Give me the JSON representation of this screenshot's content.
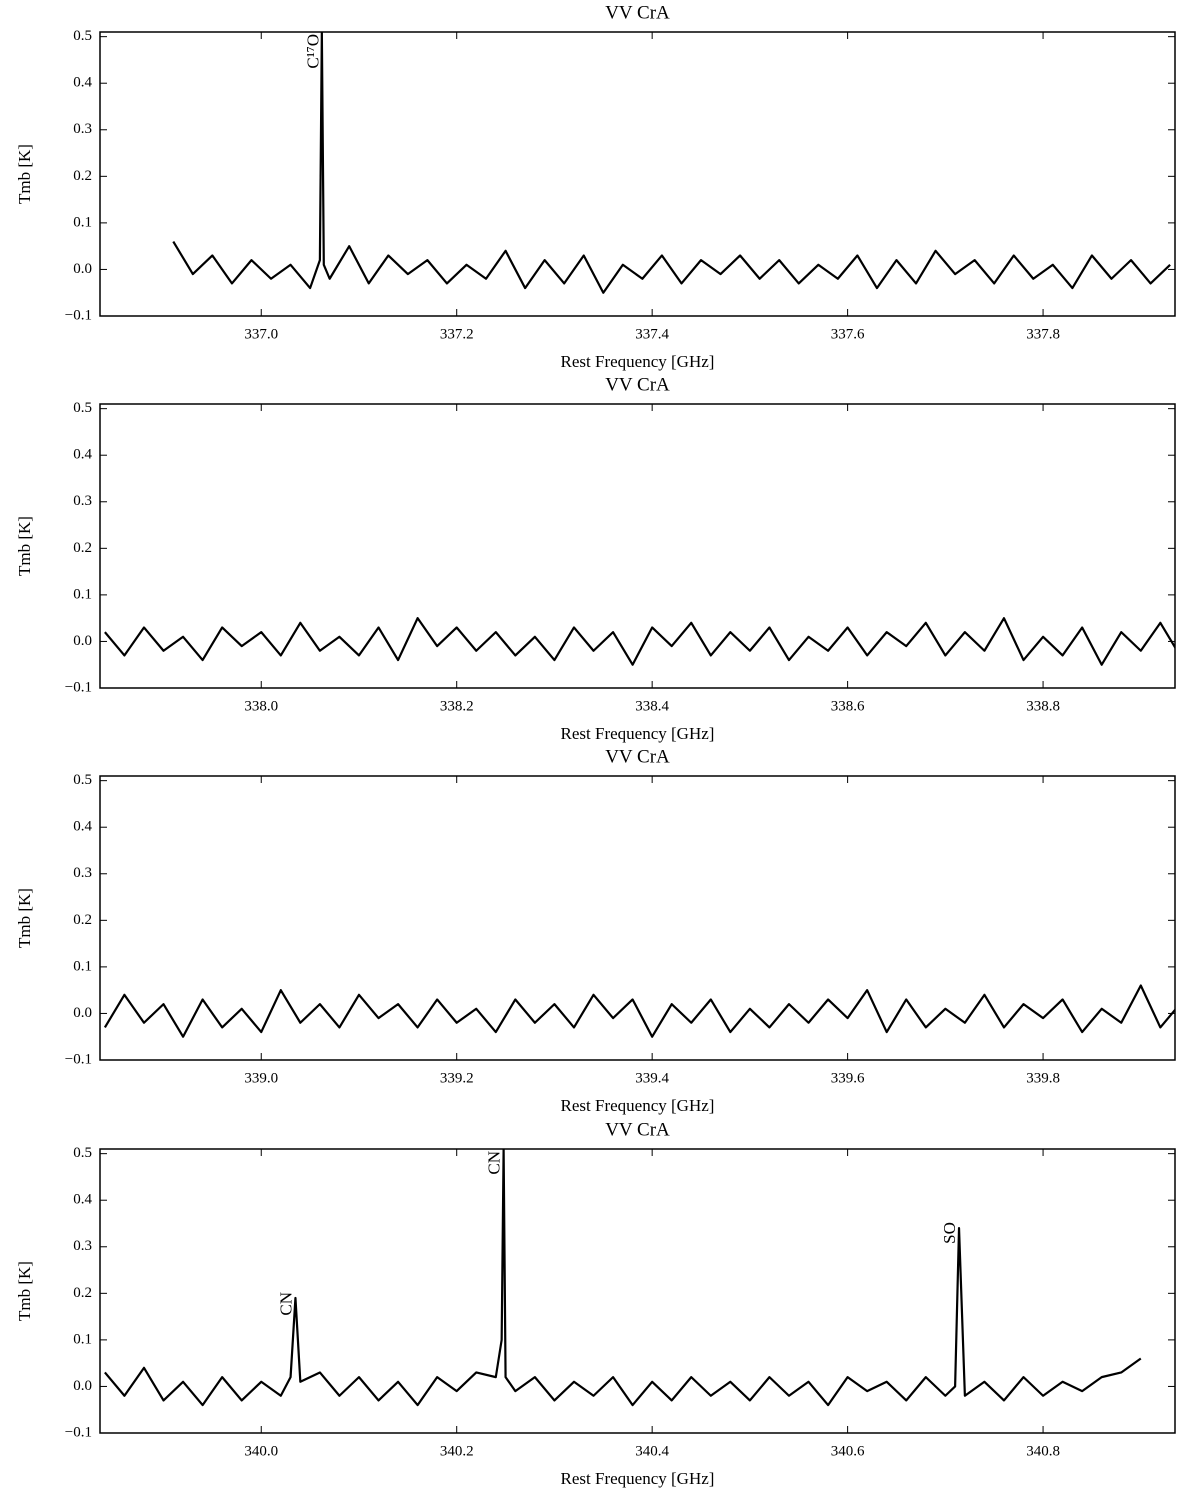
{
  "chart_data": [
    {
      "type": "line",
      "title": "VV CrA",
      "xlabel": "Rest Frequency [GHz]",
      "ylabel": "Tmb [K]",
      "xlim": [
        336.835,
        337.935
      ],
      "ylim": [
        -0.1,
        0.51
      ],
      "xticks": [
        {
          "value": 337.0,
          "label": "337.0"
        },
        337.2,
        337.4,
        337.6,
        337.8
      ],
      "yticks": [
        {
          "value": -0.1,
          "label": "−0.1"
        },
        {
          "value": 0,
          "label": "0.0"
        },
        0.1,
        0.2,
        0.3,
        0.4,
        0.5
      ],
      "series": [
        {
          "color": "#000000",
          "x": [
            336.91,
            336.93,
            336.95,
            336.97,
            336.99,
            337.01,
            337.03,
            337.05,
            337.06,
            337.062,
            337.064,
            337.07,
            337.09,
            337.11,
            337.13,
            337.15,
            337.17,
            337.19,
            337.21,
            337.23,
            337.25,
            337.27,
            337.29,
            337.31,
            337.33,
            337.35,
            337.37,
            337.39,
            337.41,
            337.43,
            337.45,
            337.47,
            337.49,
            337.51,
            337.53,
            337.55,
            337.57,
            337.59,
            337.61,
            337.63,
            337.65,
            337.67,
            337.69,
            337.71,
            337.73,
            337.75,
            337.77,
            337.79,
            337.81,
            337.83,
            337.85,
            337.87,
            337.89,
            337.91,
            337.93
          ],
          "values": [
            0.06,
            -0.01,
            0.03,
            -0.03,
            0.02,
            -0.02,
            0.01,
            -0.04,
            0.02,
            0.51,
            0.01,
            -0.02,
            0.05,
            -0.03,
            0.03,
            -0.01,
            0.02,
            -0.03,
            0.01,
            -0.02,
            0.04,
            -0.04,
            0.02,
            -0.03,
            0.03,
            -0.05,
            0.01,
            -0.02,
            0.03,
            -0.03,
            0.02,
            -0.01,
            0.03,
            -0.02,
            0.02,
            -0.03,
            0.01,
            -0.02,
            0.03,
            -0.04,
            0.02,
            -0.03,
            0.04,
            -0.01,
            0.02,
            -0.03,
            0.03,
            -0.02,
            0.01,
            -0.04,
            0.03,
            -0.02,
            0.02,
            -0.03,
            0.01
          ]
        }
      ],
      "annotations": [
        {
          "text": "C¹⁷O",
          "x": 337.063
        }
      ]
    },
    {
      "type": "line",
      "title": "VV CrA",
      "xlabel": "Rest Frequency [GHz]",
      "ylabel": "Tmb [K]",
      "xlim": [
        337.835,
        338.935
      ],
      "ylim": [
        -0.1,
        0.51
      ],
      "xticks": [
        {
          "value": 338.0,
          "label": "338.0"
        },
        338.2,
        338.4,
        338.6,
        338.8
      ],
      "yticks": [
        {
          "value": -0.1,
          "label": "−0.1"
        },
        {
          "value": 0,
          "label": "0.0"
        },
        0.1,
        0.2,
        0.3,
        0.4,
        0.5
      ],
      "series": [
        {
          "color": "#000000",
          "x": [
            337.84,
            337.86,
            337.88,
            337.9,
            337.92,
            337.94,
            337.96,
            337.98,
            338.0,
            338.02,
            338.04,
            338.06,
            338.08,
            338.1,
            338.12,
            338.14,
            338.16,
            338.18,
            338.2,
            338.22,
            338.24,
            338.26,
            338.28,
            338.3,
            338.32,
            338.34,
            338.36,
            338.38,
            338.4,
            338.42,
            338.44,
            338.46,
            338.48,
            338.5,
            338.52,
            338.54,
            338.56,
            338.58,
            338.6,
            338.62,
            338.64,
            338.66,
            338.68,
            338.7,
            338.72,
            338.74,
            338.76,
            338.78,
            338.8,
            338.82,
            338.84,
            338.86,
            338.88,
            338.9,
            338.92,
            338.94
          ],
          "values": [
            0.02,
            -0.03,
            0.03,
            -0.02,
            0.01,
            -0.04,
            0.03,
            -0.01,
            0.02,
            -0.03,
            0.04,
            -0.02,
            0.01,
            -0.03,
            0.03,
            -0.04,
            0.05,
            -0.01,
            0.03,
            -0.02,
            0.02,
            -0.03,
            0.01,
            -0.04,
            0.03,
            -0.02,
            0.02,
            -0.05,
            0.03,
            -0.01,
            0.04,
            -0.03,
            0.02,
            -0.02,
            0.03,
            -0.04,
            0.01,
            -0.02,
            0.03,
            -0.03,
            0.02,
            -0.01,
            0.04,
            -0.03,
            0.02,
            -0.02,
            0.05,
            -0.04,
            0.01,
            -0.03,
            0.03,
            -0.05,
            0.02,
            -0.02,
            0.04,
            -0.03
          ]
        }
      ]
    },
    {
      "type": "line",
      "title": "VV CrA",
      "xlabel": "Rest Frequency [GHz]",
      "ylabel": "Tmb [K]",
      "xlim": [
        338.835,
        339.935
      ],
      "ylim": [
        -0.1,
        0.51
      ],
      "xticks": [
        {
          "value": 339.0,
          "label": "339.0"
        },
        339.2,
        339.4,
        339.6,
        339.8
      ],
      "yticks": [
        {
          "value": -0.1,
          "label": "−0.1"
        },
        {
          "value": 0,
          "label": "0.0"
        },
        0.1,
        0.2,
        0.3,
        0.4,
        0.5
      ],
      "series": [
        {
          "color": "#000000",
          "x": [
            338.84,
            338.86,
            338.88,
            338.9,
            338.92,
            338.94,
            338.96,
            338.98,
            339.0,
            339.02,
            339.04,
            339.06,
            339.08,
            339.1,
            339.12,
            339.14,
            339.16,
            339.18,
            339.2,
            339.22,
            339.24,
            339.26,
            339.28,
            339.3,
            339.32,
            339.34,
            339.36,
            339.38,
            339.4,
            339.42,
            339.44,
            339.46,
            339.48,
            339.5,
            339.52,
            339.54,
            339.56,
            339.58,
            339.6,
            339.62,
            339.64,
            339.66,
            339.68,
            339.7,
            339.72,
            339.74,
            339.76,
            339.78,
            339.8,
            339.82,
            339.84,
            339.86,
            339.88,
            339.9,
            339.92,
            339.94
          ],
          "values": [
            -0.03,
            0.04,
            -0.02,
            0.02,
            -0.05,
            0.03,
            -0.03,
            0.01,
            -0.04,
            0.05,
            -0.02,
            0.02,
            -0.03,
            0.04,
            -0.01,
            0.02,
            -0.03,
            0.03,
            -0.02,
            0.01,
            -0.04,
            0.03,
            -0.02,
            0.02,
            -0.03,
            0.04,
            -0.01,
            0.03,
            -0.05,
            0.02,
            -0.02,
            0.03,
            -0.04,
            0.01,
            -0.03,
            0.02,
            -0.02,
            0.03,
            -0.01,
            0.05,
            -0.04,
            0.03,
            -0.03,
            0.01,
            -0.02,
            0.04,
            -0.03,
            0.02,
            -0.01,
            0.03,
            -0.04,
            0.01,
            -0.02,
            0.06,
            -0.03,
            0.02
          ]
        }
      ]
    },
    {
      "type": "line",
      "title": "VV CrA",
      "xlabel": "Rest Frequency [GHz]",
      "ylabel": "Tmb [K]",
      "xlim": [
        339.835,
        340.935
      ],
      "ylim": [
        -0.1,
        0.51
      ],
      "xticks": [
        {
          "value": 340.0,
          "label": "340.0"
        },
        340.2,
        340.4,
        340.6,
        340.8
      ],
      "yticks": [
        {
          "value": -0.1,
          "label": "−0.1"
        },
        {
          "value": 0,
          "label": "0.0"
        },
        0.1,
        0.2,
        0.3,
        0.4,
        0.5
      ],
      "series": [
        {
          "color": "#000000",
          "x": [
            339.84,
            339.86,
            339.88,
            339.9,
            339.92,
            339.94,
            339.96,
            339.98,
            340.0,
            340.02,
            340.03,
            340.035,
            340.04,
            340.06,
            340.08,
            340.1,
            340.12,
            340.14,
            340.16,
            340.18,
            340.2,
            340.22,
            340.24,
            340.246,
            340.248,
            340.25,
            340.26,
            340.28,
            340.3,
            340.32,
            340.34,
            340.36,
            340.38,
            340.4,
            340.42,
            340.44,
            340.46,
            340.48,
            340.5,
            340.52,
            340.54,
            340.56,
            340.58,
            340.6,
            340.62,
            340.64,
            340.66,
            340.68,
            340.7,
            340.71,
            340.714,
            340.72,
            340.74,
            340.76,
            340.78,
            340.8,
            340.82,
            340.84,
            340.86,
            340.88,
            340.9
          ],
          "values": [
            0.03,
            -0.02,
            0.04,
            -0.03,
            0.01,
            -0.04,
            0.02,
            -0.03,
            0.01,
            -0.02,
            0.02,
            0.19,
            0.01,
            0.03,
            -0.02,
            0.02,
            -0.03,
            0.01,
            -0.04,
            0.02,
            -0.01,
            0.03,
            0.02,
            0.1,
            0.51,
            0.02,
            -0.01,
            0.02,
            -0.03,
            0.01,
            -0.02,
            0.02,
            -0.04,
            0.01,
            -0.03,
            0.02,
            -0.02,
            0.01,
            -0.03,
            0.02,
            -0.02,
            0.01,
            -0.04,
            0.02,
            -0.01,
            0.01,
            -0.03,
            0.02,
            -0.02,
            0.0,
            0.34,
            -0.02,
            0.01,
            -0.03,
            0.02,
            -0.02,
            0.01,
            -0.01,
            0.02,
            0.03,
            0.06
          ]
        }
      ],
      "annotations": [
        {
          "text": "CN",
          "x": 340.035
        },
        {
          "text": "CN",
          "x": 340.248
        },
        {
          "text": "SO",
          "x": 340.714
        }
      ]
    }
  ]
}
